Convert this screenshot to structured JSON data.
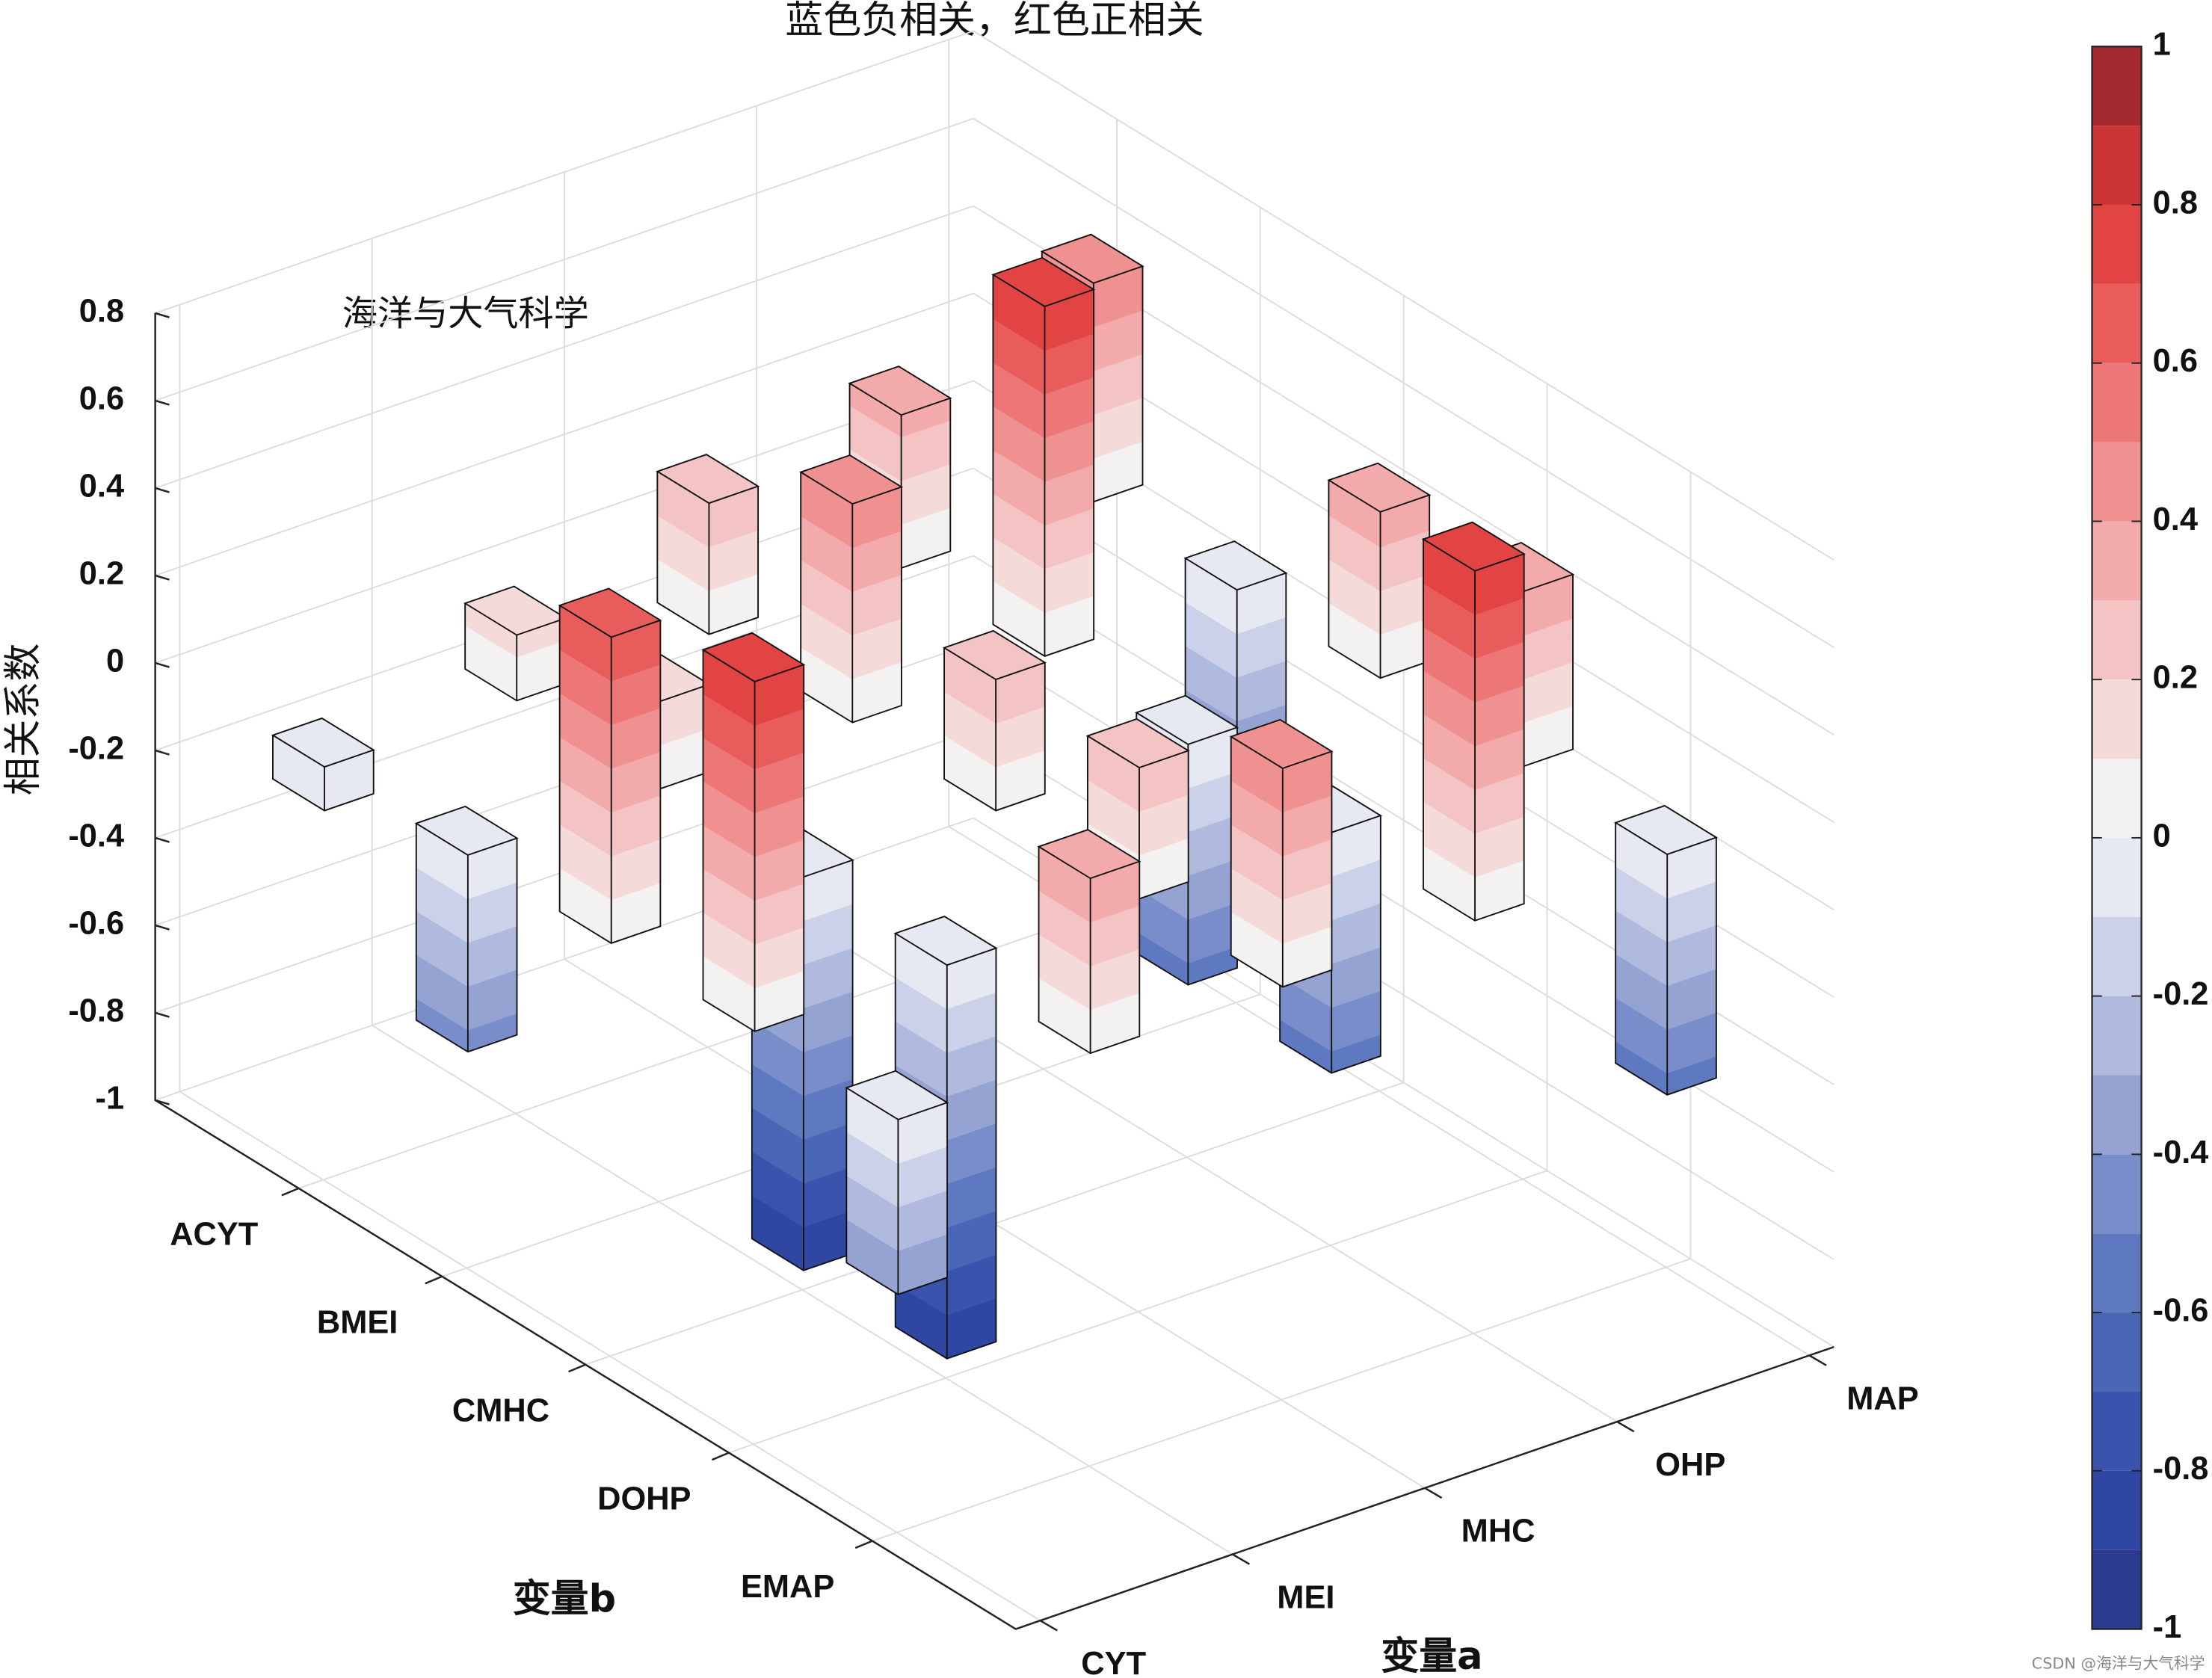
{
  "chart_data": {
    "type": "bar3d",
    "title": "蓝色负相关，红色正相关",
    "annotation": "海洋与大气科学",
    "xlabel": "变量a",
    "ylabel": "变量b",
    "zlabel": "相关系数",
    "x_categories": [
      "CYT",
      "MEI",
      "MHC",
      "OHP",
      "MAP"
    ],
    "y_categories": [
      "ACYT",
      "BMEI",
      "CMHC",
      "DOHP",
      "EMAP"
    ],
    "z": [
      [
        -0.1,
        0.15,
        0.3,
        0.35,
        0.5
      ],
      [
        -0.45,
        0.2,
        0.5,
        0.8,
        -0.4
      ],
      [
        0.7,
        -0.9,
        0.3,
        -0.55,
        0.38
      ],
      [
        0.8,
        -0.9,
        0.3,
        -0.55,
        0.4
      ],
      [
        -0.4,
        0.4,
        0.5,
        0.8,
        -0.55
      ]
    ],
    "zlim": [
      -1,
      0.8
    ],
    "zticks": [
      -1,
      -0.8,
      -0.6,
      -0.4,
      -0.2,
      0,
      0.2,
      0.4,
      0.6,
      0.8
    ],
    "grid": true,
    "clim": [
      -1,
      1
    ],
    "cticks": [
      -1,
      -0.8,
      -0.6,
      -0.4,
      -0.2,
      0,
      0.2,
      0.4,
      0.6,
      0.8,
      1
    ],
    "colormap": [
      "#2a3a8f",
      "#2f46a3",
      "#3a54ae",
      "#4a66b6",
      "#5f79c0",
      "#798dca",
      "#95a3d3",
      "#b0b9de",
      "#cbd1e8",
      "#e6e8f2",
      "#f4f1f1",
      "#f5dada",
      "#f4c3c3",
      "#f2aaaa",
      "#f09191",
      "#ed7676",
      "#e85c5c",
      "#e24343",
      "#cb3434",
      "#a52a2f"
    ],
    "watermark": "CSDN @海洋与大气科学"
  }
}
